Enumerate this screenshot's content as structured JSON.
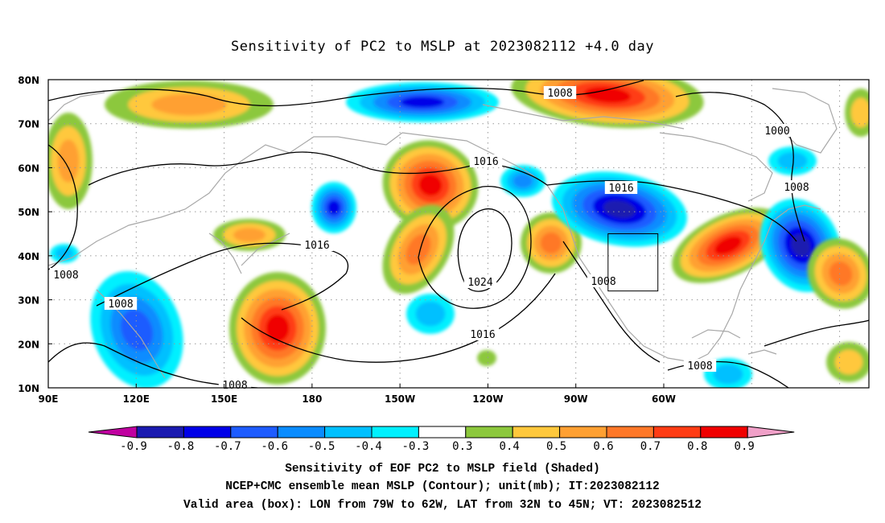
{
  "title": "Sensitivity of PC2 to MSLP at 2023082112 +4.0 day",
  "map": {
    "lon_labels": [
      "90E",
      "120E",
      "150E",
      "180",
      "150W",
      "120W",
      "90W",
      "60W"
    ],
    "lat_labels": [
      "10N",
      "20N",
      "30N",
      "40N",
      "50N",
      "60N",
      "70N",
      "80N"
    ],
    "contour_labels": [
      "1008",
      "1000",
      "1016",
      "1008",
      "1016",
      "1024",
      "1008",
      "1016",
      "1008",
      "1008",
      "1008",
      "1016",
      "1008"
    ],
    "valid_box": {
      "lon_min": -79,
      "lon_max": -62,
      "lat_min": 32,
      "lat_max": 45
    }
  },
  "colorbar": {
    "labels": [
      "-0.9",
      "-0.8",
      "-0.7",
      "-0.6",
      "-0.5",
      "-0.4",
      "-0.3",
      "0.3",
      "0.4",
      "0.5",
      "0.6",
      "0.7",
      "0.8",
      "0.9"
    ],
    "colors": [
      "#c000a0",
      "#1a1ab0",
      "#0000e8",
      "#1e5cff",
      "#0a8cff",
      "#00c0ff",
      "#00f0ff",
      "#ffffff",
      "#8cc83c",
      "#ffc83c",
      "#ffa032",
      "#ff7828",
      "#ff3c14",
      "#f00000",
      "#f0a0c8"
    ]
  },
  "footer": {
    "line1": "Sensitivity of EOF PC2 to MSLP field (Shaded)",
    "line2": "NCEP+CMC ensemble mean MSLP (Contour); unit(mb); IT:2023082112",
    "line3": "Valid area (box): LON from 79W to 62W, LAT from 32N to 45N; VT: 2023082512"
  }
}
